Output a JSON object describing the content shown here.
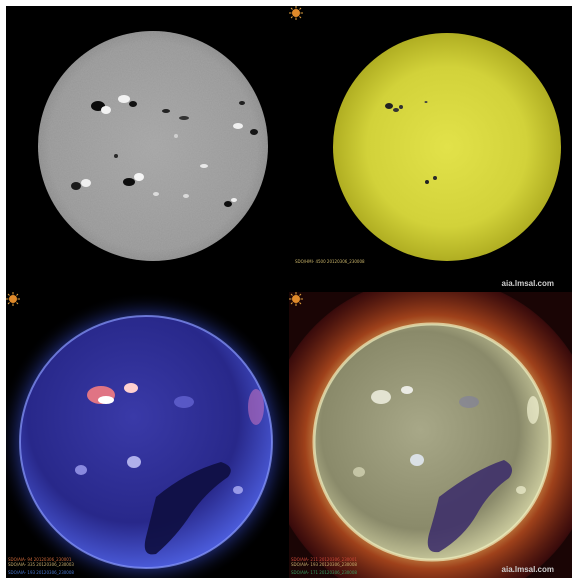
{
  "panels": {
    "hmi_magnetogram": {
      "caption": ""
    },
    "hmi_continuum": {
      "caption": "SDO/HMI- 4500 20120306_230008",
      "caption_color": "#c9b46a",
      "brand": "aia.lmsal.com"
    },
    "aia_composite_blue": {
      "captions": [
        {
          "text": "SDO/AIA- 94 20120306_230001",
          "color": "#d06a3a"
        },
        {
          "text": "SDO/AIA- 335 20120306_230003",
          "color": "#c8b070"
        },
        {
          "text": "SDO/AIA- 193 20120306_230008",
          "color": "#4a78d0"
        }
      ],
      "brand": ""
    },
    "aia_composite_yellow": {
      "captions": [
        {
          "text": "SDO/AIA- 211 20120306_230001",
          "color": "#d04a3a"
        },
        {
          "text": "SDO/AIA- 193 20120306_230008",
          "color": "#c8b070"
        },
        {
          "text": "SDO/AIA- 171 20120306_230008",
          "color": "#3a9a60"
        }
      ],
      "brand": "aia.lmsal.com"
    }
  },
  "colors": {
    "background": "#000000",
    "continuum_disk": "#d8d83a",
    "magnetogram_disk": "#9a9a9a",
    "blue_disk": "#2a2a8a",
    "yellow_disk": "#9a9a6a"
  }
}
